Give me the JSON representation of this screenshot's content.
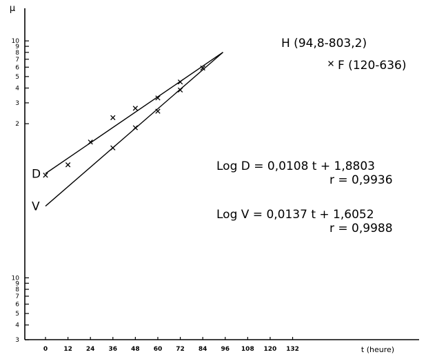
{
  "chart_data": {
    "type": "scatter",
    "y_scale": "log",
    "ylabel": "μ",
    "xlabel": "t (heure)",
    "x_ticks": [
      0,
      12,
      24,
      36,
      48,
      60,
      72,
      84,
      96,
      108,
      120,
      132
    ],
    "x_tick_labels": [
      "0",
      "12",
      "24",
      "36",
      "48",
      "60",
      "72",
      "84",
      "96",
      "108",
      "120",
      "132"
    ],
    "y_ticks_decade1": [
      3,
      4,
      5,
      6,
      7,
      8,
      9,
      10
    ],
    "y_ticks_decade1_labels": [
      "3",
      "4",
      "5",
      "6",
      "7",
      "8",
      "9",
      "10"
    ],
    "y_ticks_decade2": [
      200,
      300,
      400,
      500,
      600,
      700,
      800,
      900,
      1000
    ],
    "y_ticks_decade2_labels": [
      "2",
      "3",
      "4",
      "5",
      "6",
      "7",
      "8",
      "9",
      "10"
    ],
    "ylim": [
      30,
      1100
    ],
    "xlim": [
      -6,
      134
    ],
    "series": [
      {
        "name": "D",
        "x": [
          0,
          12,
          24,
          36,
          48,
          60,
          72
        ],
        "y": [
          73.5,
          90,
          140,
          225,
          270,
          330,
          450
        ],
        "fit": {
          "slope": 0.0108,
          "intercept": 1.8803,
          "x_range": [
            0,
            94.8
          ]
        },
        "equation": "Log D = 0,0108 t + 1,8803",
        "r": "r = 0,9936"
      },
      {
        "name": "V",
        "x": [
          36,
          48,
          60,
          72,
          84
        ],
        "y": [
          125,
          185,
          255,
          385,
          590
        ],
        "fit": {
          "slope": 0.0137,
          "intercept": 1.6052,
          "x_range": [
            0,
            94.8
          ]
        },
        "equation": "Log V = 0,0137 t + 1,6052",
        "r": "r = 0,9988"
      }
    ],
    "annotations": {
      "H": {
        "label": "H (94,8-803,2)",
        "x": 94.8,
        "y": 803.2
      },
      "F": {
        "label": "F (120-636)",
        "x": 120,
        "y": 636
      }
    },
    "grid": false
  }
}
